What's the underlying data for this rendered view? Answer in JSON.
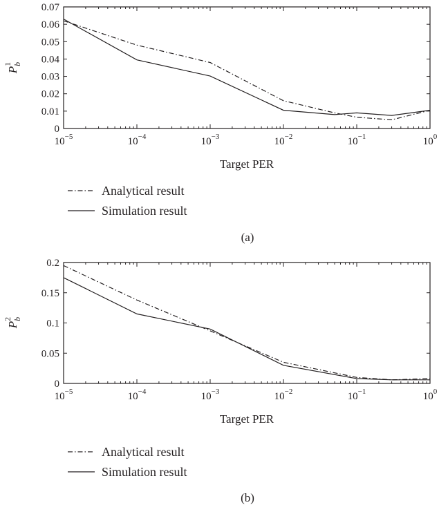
{
  "chart_data": [
    {
      "panel": "(a)",
      "type": "line",
      "xlabel": "Target PER",
      "ylabel_base": "P",
      "ylabel_sub": "b",
      "ylabel_sup": "1",
      "xscale": "log",
      "xlim": [
        1e-05,
        1
      ],
      "ylim": [
        0,
        0.07
      ],
      "x_ticks": [
        {
          "value": 1e-05,
          "base": "10",
          "exp": "−5"
        },
        {
          "value": 0.0001,
          "base": "10",
          "exp": "−4"
        },
        {
          "value": 0.001,
          "base": "10",
          "exp": "−3"
        },
        {
          "value": 0.01,
          "base": "10",
          "exp": "−2"
        },
        {
          "value": 0.1,
          "base": "10",
          "exp": "−1"
        },
        {
          "value": 1,
          "base": "10",
          "exp": "0"
        }
      ],
      "y_ticks": [
        {
          "value": 0,
          "label": "0"
        },
        {
          "value": 0.01,
          "label": "0.01"
        },
        {
          "value": 0.02,
          "label": "0.02"
        },
        {
          "value": 0.03,
          "label": "0.03"
        },
        {
          "value": 0.04,
          "label": "0.04"
        },
        {
          "value": 0.05,
          "label": "0.05"
        },
        {
          "value": 0.06,
          "label": "0.06"
        },
        {
          "value": 0.07,
          "label": "0.07"
        }
      ],
      "grid": false,
      "legend_position": "below",
      "series": [
        {
          "name": "Analytical result",
          "style": "dashdot",
          "x": [
            1e-05,
            0.0001,
            0.001,
            0.01,
            0.05,
            0.1,
            0.3,
            1
          ],
          "y": [
            0.062,
            0.048,
            0.038,
            0.016,
            0.009,
            0.0065,
            0.005,
            0.0105
          ]
        },
        {
          "name": "Simulation result",
          "style": "solid",
          "x": [
            1e-05,
            0.0001,
            0.001,
            0.01,
            0.05,
            0.1,
            0.3,
            1
          ],
          "y": [
            0.063,
            0.0395,
            0.0302,
            0.0105,
            0.008,
            0.009,
            0.0075,
            0.0105
          ]
        }
      ]
    },
    {
      "panel": "(b)",
      "type": "line",
      "xlabel": "Target PER",
      "ylabel_base": "P",
      "ylabel_sub": "b",
      "ylabel_sup": "2",
      "xscale": "log",
      "xlim": [
        1e-05,
        1
      ],
      "ylim": [
        0,
        0.2
      ],
      "x_ticks": [
        {
          "value": 1e-05,
          "base": "10",
          "exp": "−5"
        },
        {
          "value": 0.0001,
          "base": "10",
          "exp": "−4"
        },
        {
          "value": 0.001,
          "base": "10",
          "exp": "−3"
        },
        {
          "value": 0.01,
          "base": "10",
          "exp": "−2"
        },
        {
          "value": 0.1,
          "base": "10",
          "exp": "−1"
        },
        {
          "value": 1,
          "base": "10",
          "exp": "0"
        }
      ],
      "y_ticks": [
        {
          "value": 0,
          "label": "0"
        },
        {
          "value": 0.05,
          "label": "0.05"
        },
        {
          "value": 0.1,
          "label": "0.1"
        },
        {
          "value": 0.15,
          "label": "0.15"
        },
        {
          "value": 0.2,
          "label": "0.2"
        }
      ],
      "grid": false,
      "legend_position": "below",
      "series": [
        {
          "name": "Analytical result",
          "style": "dashdot",
          "x": [
            1e-05,
            0.0001,
            0.001,
            0.01,
            0.1,
            0.3,
            1
          ],
          "y": [
            0.195,
            0.138,
            0.087,
            0.035,
            0.01,
            0.006,
            0.008
          ]
        },
        {
          "name": "Simulation result",
          "style": "solid",
          "x": [
            1e-05,
            0.0001,
            0.001,
            0.01,
            0.1,
            0.3,
            1
          ],
          "y": [
            0.175,
            0.115,
            0.09,
            0.03,
            0.008,
            0.006,
            0.006
          ]
        }
      ]
    }
  ]
}
